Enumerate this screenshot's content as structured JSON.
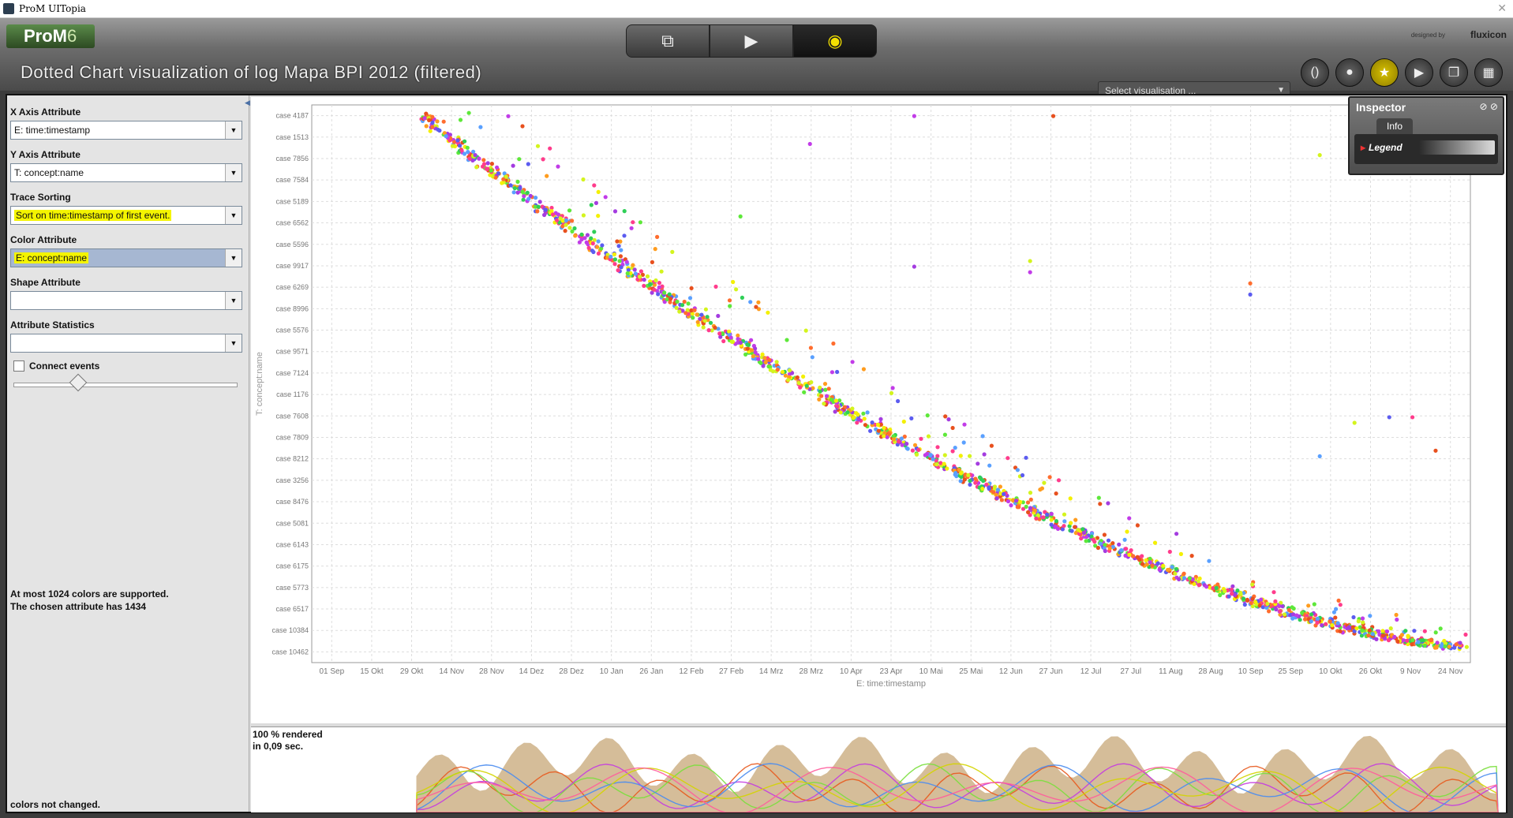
{
  "window": {
    "title": "ProM UITopia"
  },
  "logo": {
    "text": "ProM",
    "version": "6"
  },
  "header": {
    "subtitle": "Dotted Chart visualization of log Mapa BPI 2012 (filtered)",
    "designed_by": "designed by",
    "brand": "fluxicon",
    "select_visualisation": "Select visualisation ..."
  },
  "modes": [
    "workspace",
    "actions",
    "views"
  ],
  "tools": [
    "bracket-icon",
    "drop-icon",
    "star-icon",
    "play-icon",
    "copy-icon",
    "grid-icon"
  ],
  "left_panel": {
    "x_axis_label": "X Axis Attribute",
    "x_axis_value": "E: time:timestamp",
    "y_axis_label": "Y Axis Attribute",
    "y_axis_value": "T: concept:name",
    "sorting_label": "Trace Sorting",
    "sorting_value": "Sort on time:timestamp of first event.",
    "color_label": "Color Attribute",
    "color_value": "E: concept:name",
    "shape_label": "Shape Attribute",
    "shape_value": "",
    "stats_label": "Attribute Statistics",
    "stats_value": "",
    "connect_label": "Connect events",
    "msg_line1": "At most 1024 colors are supported.",
    "msg_line2": "The chosen attribute has 1434",
    "msg_bottom": "colors not changed."
  },
  "render_status": {
    "line1": "100 % rendered",
    "line2": "in 0,09 sec."
  },
  "inspector": {
    "title": "Inspector",
    "tab": "Info",
    "legend": "Legend"
  },
  "chart_data": {
    "type": "scatter",
    "xlabel": "E: time:timestamp",
    "ylabel": "T: concept:name",
    "x_ticks": [
      "01 Sep",
      "15 Okt",
      "29 Okt",
      "14 Nov",
      "28 Nov",
      "14 Dez",
      "28 Dez",
      "10 Jan",
      "26 Jan",
      "12 Feb",
      "27 Feb",
      "14 Mrz",
      "28 Mrz",
      "10 Apr",
      "23 Apr",
      "10 Mai",
      "25 Mai",
      "12 Jun",
      "27 Jun",
      "12 Jul",
      "27 Jul",
      "11 Aug",
      "28 Aug",
      "10 Sep",
      "25 Sep",
      "10 Okt",
      "26 Okt",
      "9 Nov",
      "24 Nov"
    ],
    "y_ticks": [
      "case 4187",
      "case 1513",
      "case 7856",
      "case 7584",
      "case 5189",
      "case 6562",
      "case 5596",
      "case 9917",
      "case 6269",
      "case 8996",
      "case 5576",
      "case 9571",
      "case 7124",
      "case 1176",
      "case 7608",
      "case 7809",
      "case 8212",
      "case 3256",
      "case 8476",
      "case 5081",
      "case 6143",
      "case 6175",
      "case 5773",
      "case 6517",
      "case 10384",
      "case 10462"
    ],
    "grid": true,
    "series_colors": [
      "#e8501e",
      "#ff6d2e",
      "#ff9c1e",
      "#d4f41e",
      "#f4f000",
      "#5ee83a",
      "#2fcf57",
      "#c23ce8",
      "#a43ce0",
      "#5c5cf0",
      "#5aa0ff",
      "#ff3c8c"
    ]
  }
}
